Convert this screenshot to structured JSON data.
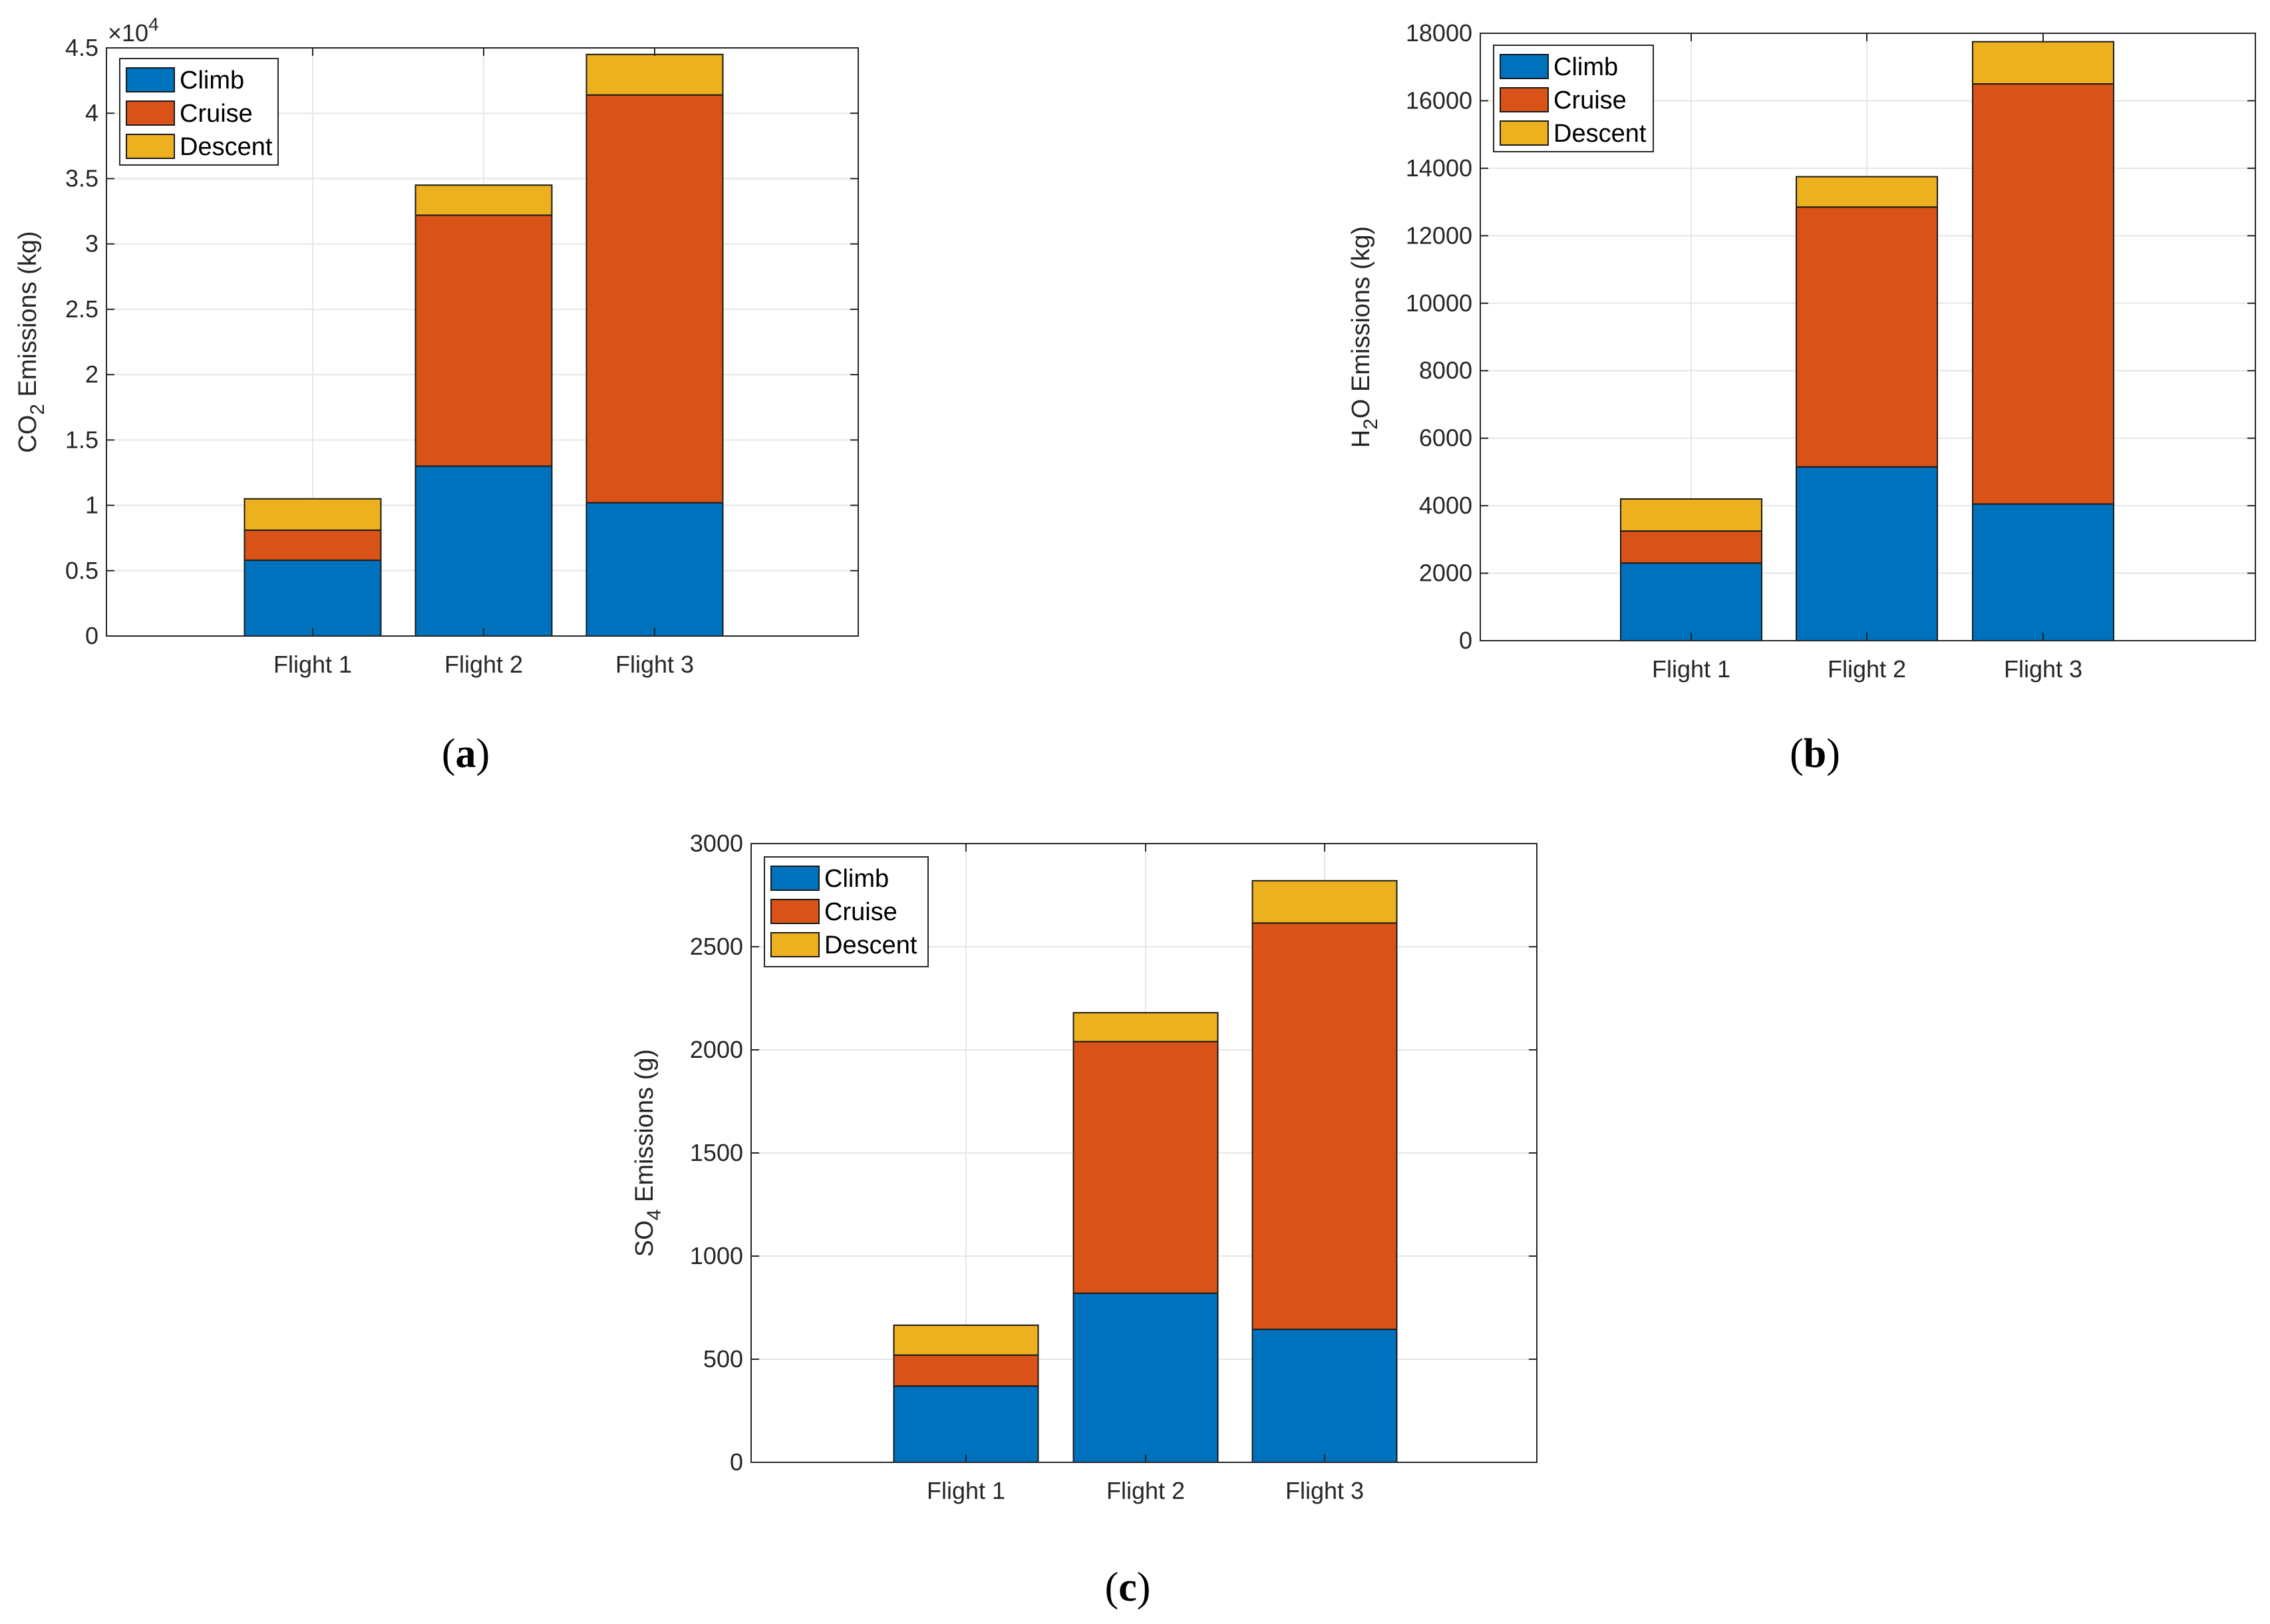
{
  "legend_colors": {
    "Climb": "#0072BD",
    "Cruise": "#D95319",
    "Descent": "#EDB120"
  },
  "chart_data": [
    {
      "id": "a",
      "type": "bar",
      "stacked": true,
      "caption_letter": "a",
      "categories": [
        "Flight 1",
        "Flight 2",
        "Flight 3"
      ],
      "series": [
        {
          "name": "Climb",
          "color": "#0072BD",
          "values": [
            5800,
            13000,
            10200
          ]
        },
        {
          "name": "Cruise",
          "color": "#D95319",
          "values": [
            2300,
            19200,
            31200
          ]
        },
        {
          "name": "Descent",
          "color": "#EDB120",
          "values": [
            2400,
            2300,
            3100
          ]
        }
      ],
      "ylabel_main": "CO",
      "ylabel_sub": "2",
      "ylabel_rest": " Emissions (kg)",
      "ylim": [
        0,
        45000
      ],
      "yticks": [
        0,
        5000,
        10000,
        15000,
        20000,
        25000,
        30000,
        35000,
        40000,
        45000
      ],
      "ytick_labels": [
        "0",
        "0.5",
        "1",
        "1.5",
        "2",
        "2.5",
        "3",
        "3.5",
        "4",
        "4.5"
      ],
      "exponent_prefix": "×10",
      "exponent_power": "4",
      "grid": true,
      "legend": "top-left"
    },
    {
      "id": "b",
      "type": "bar",
      "stacked": true,
      "caption_letter": "b",
      "categories": [
        "Flight 1",
        "Flight 2",
        "Flight 3"
      ],
      "series": [
        {
          "name": "Climb",
          "color": "#0072BD",
          "values": [
            2300,
            5150,
            4050
          ]
        },
        {
          "name": "Cruise",
          "color": "#D95319",
          "values": [
            950,
            7700,
            12450
          ]
        },
        {
          "name": "Descent",
          "color": "#EDB120",
          "values": [
            950,
            900,
            1250
          ]
        }
      ],
      "ylabel_main": "H",
      "ylabel_sub": "2",
      "ylabel_rest": "O Emissions (kg)",
      "ylim": [
        0,
        18000
      ],
      "yticks": [
        0,
        2000,
        4000,
        6000,
        8000,
        10000,
        12000,
        14000,
        16000,
        18000
      ],
      "ytick_labels": [
        "0",
        "2000",
        "4000",
        "6000",
        "8000",
        "10000",
        "12000",
        "14000",
        "16000",
        "18000"
      ],
      "grid": true,
      "legend": "top-left"
    },
    {
      "id": "c",
      "type": "bar",
      "stacked": true,
      "caption_letter": "c",
      "categories": [
        "Flight 1",
        "Flight 2",
        "Flight 3"
      ],
      "series": [
        {
          "name": "Climb",
          "color": "#0072BD",
          "values": [
            370,
            820,
            645
          ]
        },
        {
          "name": "Cruise",
          "color": "#D95319",
          "values": [
            150,
            1220,
            1970
          ]
        },
        {
          "name": "Descent",
          "color": "#EDB120",
          "values": [
            145,
            140,
            205
          ]
        }
      ],
      "ylabel_main": "SO",
      "ylabel_sub": "4",
      "ylabel_rest": " Emissions (g)",
      "ylim": [
        0,
        3000
      ],
      "yticks": [
        0,
        500,
        1000,
        1500,
        2000,
        2500,
        3000
      ],
      "ytick_labels": [
        "0",
        "500",
        "1000",
        "1500",
        "2000",
        "2500",
        "3000"
      ],
      "grid": true,
      "legend": "top-left"
    }
  ]
}
